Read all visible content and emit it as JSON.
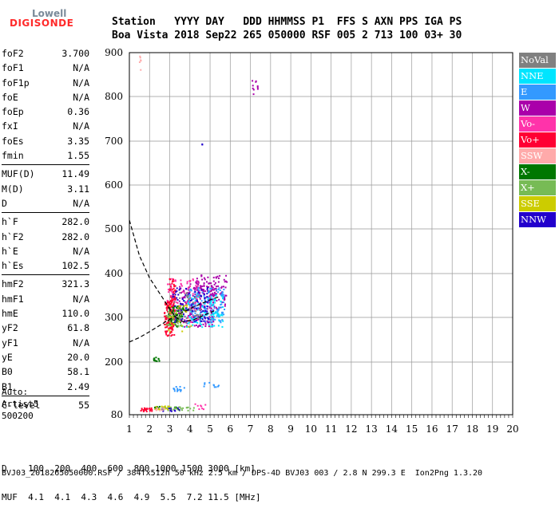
{
  "logo": {
    "line1": "Lowell",
    "line2": "DIGISONDE"
  },
  "header": {
    "labels": "Station   YYYY DAY   DDD HHMMSS P1  FFS S AXN PPS IGA PS",
    "values": "Boa Vista 2018 Sep22 265 050000 RSF 005 2 713 100 03+ 30"
  },
  "params": {
    "group1": [
      {
        "label": "foF2",
        "value": "3.700"
      },
      {
        "label": "foF1",
        "value": "N/A"
      },
      {
        "label": "foF1p",
        "value": "N/A"
      },
      {
        "label": "foE",
        "value": "N/A"
      },
      {
        "label": "foEp",
        "value": "0.36"
      },
      {
        "label": "fxI",
        "value": "N/A"
      },
      {
        "label": "foEs",
        "value": "3.35"
      },
      {
        "label": "fmin",
        "value": "1.55"
      }
    ],
    "group2": [
      {
        "label": "MUF(D)",
        "value": "11.49"
      },
      {
        "label": "M(D)",
        "value": "3.11"
      },
      {
        "label": "D",
        "value": "N/A"
      }
    ],
    "group3": [
      {
        "label": "h`F",
        "value": "282.0"
      },
      {
        "label": "h`F2",
        "value": "282.0"
      },
      {
        "label": "h`E",
        "value": "N/A"
      },
      {
        "label": "h`Es",
        "value": "102.5"
      }
    ],
    "group4": [
      {
        "label": "hmF2",
        "value": "321.3"
      },
      {
        "label": "hmF1",
        "value": "N/A"
      },
      {
        "label": "hmE",
        "value": "110.0"
      },
      {
        "label": "yF2",
        "value": "61.8"
      },
      {
        "label": "yF1",
        "value": "N/A"
      },
      {
        "label": "yE",
        "value": "20.0"
      },
      {
        "label": "B0",
        "value": "58.1"
      },
      {
        "label": "B1",
        "value": "2.49"
      }
    ],
    "group5": [
      {
        "label": "C-level",
        "value": "55"
      }
    ]
  },
  "auto": {
    "line1": "Auto:",
    "line2": "Artist5",
    "line3": "500200"
  },
  "legend": [
    {
      "label": "NoVal",
      "color": "#808080"
    },
    {
      "label": "NNE",
      "color": "#00e5ff"
    },
    {
      "label": "E",
      "color": "#3399ff"
    },
    {
      "label": "W",
      "color": "#aa00aa"
    },
    {
      "label": "Vo-",
      "color": "#ff33aa"
    },
    {
      "label": "Vo+",
      "color": "#ff0033"
    },
    {
      "label": "SSW",
      "color": "#ffaaaa"
    },
    {
      "label": "X-",
      "color": "#007700"
    },
    {
      "label": "X+",
      "color": "#77bb55"
    },
    {
      "label": "SSE",
      "color": "#cccc00"
    },
    {
      "label": "NNW",
      "color": "#2200cc"
    }
  ],
  "footer": {
    "line1": "D    100  200  400  600  800 1000 1500 3000 [km]",
    "line2": "MUF  4.1  4.1  4.3  4.6  4.9  5.5  7.2 11.5 [MHz]",
    "line3": "BVJ03_2018265050000.RSF / 384fx512h 50 kHz 2.5 km / DPS-4D BVJ03 003 / 2.8 N 299.3 E  Ion2Png 1.3.20"
  },
  "chart_data": {
    "type": "scatter",
    "xlim": [
      1,
      20
    ],
    "ylim": [
      80,
      900
    ],
    "xticks": [
      "1",
      "2",
      "3",
      "4",
      "5",
      "6",
      "7",
      "8",
      "9",
      "10",
      "11",
      "12",
      "13",
      "14",
      "15",
      "16",
      "17",
      "18",
      "19",
      "20"
    ],
    "yticks": [
      "80",
      "200",
      "300",
      "400",
      "500",
      "600",
      "700",
      "800",
      "900"
    ],
    "grid": true,
    "legend_position": "right",
    "series": [
      {
        "name": "Vo+",
        "clusters": [
          [
            2.95,
            300,
            0.25,
            40,
            140
          ],
          [
            3.1,
            350,
            0.15,
            40,
            60
          ],
          [
            1.8,
            93,
            0.3,
            4,
            25
          ]
        ]
      },
      {
        "name": "W",
        "clusters": [
          [
            4.3,
            330,
            0.9,
            50,
            160
          ],
          [
            5.0,
            360,
            0.8,
            40,
            120
          ],
          [
            7.2,
            825,
            0.15,
            18,
            10
          ]
        ]
      },
      {
        "name": "E",
        "clusters": [
          [
            4.8,
            330,
            0.9,
            40,
            140
          ],
          [
            3.4,
            140,
            0.3,
            6,
            15
          ],
          [
            5.0,
            150,
            0.4,
            6,
            10
          ]
        ]
      },
      {
        "name": "NNE",
        "clusters": [
          [
            4.6,
            320,
            1.0,
            40,
            100
          ]
        ]
      },
      {
        "name": "Vo-",
        "clusters": [
          [
            3.6,
            340,
            0.8,
            50,
            90
          ],
          [
            4.5,
            100,
            0.3,
            6,
            8
          ]
        ]
      },
      {
        "name": "X-",
        "clusters": [
          [
            3.3,
            305,
            0.4,
            25,
            70
          ],
          [
            2.3,
            207,
            0.15,
            5,
            12
          ],
          [
            2.8,
            97,
            0.6,
            4,
            20
          ]
        ]
      },
      {
        "name": "X+",
        "clusters": [
          [
            3.2,
            300,
            0.4,
            20,
            40
          ],
          [
            3.4,
            95,
            0.8,
            4,
            30
          ]
        ]
      },
      {
        "name": "SSE",
        "clusters": [
          [
            3.5,
            300,
            0.6,
            30,
            30
          ],
          [
            2.6,
            97,
            0.4,
            4,
            12
          ]
        ]
      },
      {
        "name": "NNW",
        "clusters": [
          [
            4.0,
            330,
            0.9,
            40,
            80
          ],
          [
            4.6,
            692,
            0.05,
            3,
            2
          ],
          [
            3.0,
            93,
            0.5,
            4,
            10
          ]
        ]
      },
      {
        "name": "SSW",
        "clusters": [
          [
            1.5,
            870,
            0.05,
            25,
            6
          ],
          [
            2.6,
            93,
            0.4,
            4,
            8
          ]
        ]
      },
      {
        "name": "NoVal",
        "clusters": [
          [
            3.8,
            320,
            0.7,
            40,
            30
          ]
        ]
      }
    ],
    "trace_curve": [
      [
        1,
        520
      ],
      [
        1.5,
        440
      ],
      [
        2,
        390
      ],
      [
        2.5,
        355
      ],
      [
        3.0,
        320
      ],
      [
        3.3,
        300
      ],
      [
        3.7,
        290
      ],
      [
        4.2,
        295
      ],
      [
        4.7,
        305
      ],
      [
        5.2,
        315
      ]
    ],
    "lower_curve": [
      [
        1,
        245
      ],
      [
        1.5,
        255
      ],
      [
        2,
        268
      ],
      [
        2.5,
        282
      ],
      [
        3,
        296
      ],
      [
        3.5,
        308
      ],
      [
        4,
        320
      ],
      [
        4.5,
        330
      ],
      [
        5,
        340
      ],
      [
        5.5,
        348
      ]
    ]
  }
}
